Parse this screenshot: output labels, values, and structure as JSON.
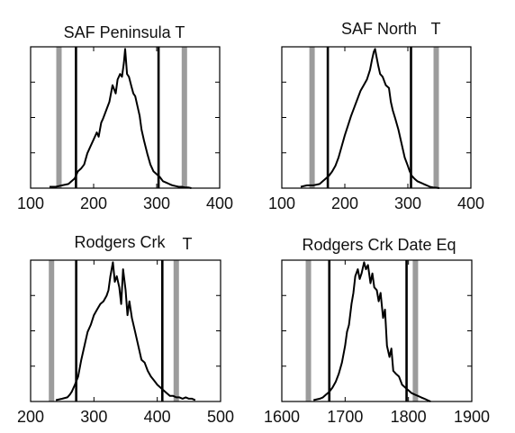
{
  "chart_data": [
    {
      "type": "line",
      "title": "SAF Peninsula  T",
      "xlim": [
        100,
        400
      ],
      "xticks": [
        100,
        200,
        300,
        400
      ],
      "ylim": [
        0,
        1
      ],
      "grid": false,
      "gray_lines": [
        145,
        344
      ],
      "black_lines": [
        172,
        303
      ],
      "series": [
        {
          "x": [
            130,
            140,
            150,
            160,
            165,
            170,
            175,
            180,
            185,
            190,
            195,
            200,
            205,
            208,
            212,
            215,
            220,
            225,
            230,
            235,
            238,
            242,
            245,
            248,
            250,
            253,
            256,
            260,
            263,
            266,
            270,
            273,
            276,
            280,
            285,
            290,
            295,
            300,
            305,
            310,
            315,
            320,
            325,
            330,
            335,
            340,
            345,
            350,
            355
          ],
          "y": [
            0.01,
            0.01,
            0.02,
            0.03,
            0.05,
            0.07,
            0.12,
            0.14,
            0.17,
            0.25,
            0.3,
            0.35,
            0.4,
            0.37,
            0.47,
            0.5,
            0.56,
            0.62,
            0.74,
            0.68,
            0.78,
            0.82,
            0.8,
            0.9,
            1.0,
            0.82,
            0.8,
            0.73,
            0.68,
            0.66,
            0.58,
            0.52,
            0.42,
            0.34,
            0.25,
            0.17,
            0.12,
            0.1,
            0.08,
            0.05,
            0.04,
            0.03,
            0.02,
            0.015,
            0.01,
            0.01,
            0.005,
            0.005,
            0.0
          ]
        }
      ]
    },
    {
      "type": "line",
      "title": "SAF North",
      "title_suffix": "T",
      "xlim": [
        100,
        400
      ],
      "xticks": [
        100,
        200,
        300,
        400
      ],
      "ylim": [
        0,
        1
      ],
      "grid": false,
      "gray_lines": [
        148,
        345
      ],
      "black_lines": [
        173,
        305
      ],
      "series": [
        {
          "x": [
            130,
            140,
            150,
            160,
            165,
            170,
            175,
            180,
            185,
            190,
            195,
            200,
            205,
            210,
            215,
            220,
            225,
            230,
            235,
            240,
            243,
            246,
            248,
            250,
            253,
            256,
            260,
            265,
            270,
            273,
            276,
            280,
            285,
            290,
            295,
            300,
            303,
            306,
            310,
            315,
            320,
            325,
            330,
            335,
            340,
            345,
            350
          ],
          "y": [
            0.01,
            0.02,
            0.02,
            0.03,
            0.05,
            0.07,
            0.09,
            0.12,
            0.16,
            0.22,
            0.3,
            0.38,
            0.45,
            0.52,
            0.58,
            0.64,
            0.7,
            0.74,
            0.78,
            0.85,
            0.92,
            0.98,
            1.0,
            0.95,
            0.88,
            0.82,
            0.8,
            0.74,
            0.72,
            0.62,
            0.56,
            0.5,
            0.42,
            0.32,
            0.22,
            0.16,
            0.12,
            0.09,
            0.07,
            0.05,
            0.04,
            0.03,
            0.02,
            0.01,
            0.005,
            0.003,
            0.0
          ]
        }
      ]
    },
    {
      "type": "line",
      "title": "Rodgers Crk",
      "title_suffix": "T",
      "xlim": [
        200,
        500
      ],
      "xticks": [
        200,
        300,
        400,
        500
      ],
      "ylim": [
        0,
        1
      ],
      "grid": false,
      "gray_lines": [
        233,
        430
      ],
      "black_lines": [
        272,
        408
      ],
      "series": [
        {
          "x": [
            240,
            250,
            258,
            262,
            265,
            270,
            275,
            280,
            285,
            290,
            295,
            300,
            305,
            310,
            315,
            320,
            323,
            326,
            328,
            330,
            333,
            336,
            340,
            343,
            346,
            350,
            353,
            356,
            360,
            365,
            370,
            375,
            380,
            385,
            390,
            395,
            400,
            405,
            410,
            415,
            420,
            425,
            430,
            435,
            440,
            445,
            450,
            455,
            460
          ],
          "y": [
            0.01,
            0.02,
            0.03,
            0.05,
            0.07,
            0.12,
            0.18,
            0.3,
            0.4,
            0.5,
            0.55,
            0.62,
            0.66,
            0.7,
            0.72,
            0.76,
            0.8,
            0.9,
            0.95,
            1.0,
            0.86,
            0.9,
            0.82,
            0.7,
            0.95,
            0.8,
            0.62,
            0.72,
            0.6,
            0.5,
            0.4,
            0.3,
            0.28,
            0.22,
            0.18,
            0.15,
            0.12,
            0.1,
            0.08,
            0.06,
            0.04,
            0.04,
            0.03,
            0.03,
            0.02,
            0.03,
            0.02,
            0.02,
            0.01
          ]
        }
      ]
    },
    {
      "type": "line",
      "title": "Rodgers Crk Date Eq",
      "xlim": [
        1600,
        1900
      ],
      "xticks": [
        1600,
        1700,
        1800,
        1900
      ],
      "ylim": [
        0,
        1
      ],
      "grid": false,
      "gray_lines": [
        1642,
        1811
      ],
      "black_lines": [
        1675,
        1797
      ],
      "series": [
        {
          "x": [
            1650,
            1660,
            1665,
            1670,
            1675,
            1680,
            1685,
            1690,
            1695,
            1700,
            1703,
            1706,
            1710,
            1713,
            1716,
            1720,
            1723,
            1726,
            1730,
            1733,
            1736,
            1740,
            1743,
            1746,
            1750,
            1753,
            1756,
            1760,
            1763,
            1766,
            1770,
            1773,
            1776,
            1780,
            1785,
            1790,
            1795,
            1800,
            1805,
            1810,
            1815,
            1820,
            1825,
            1830,
            1835
          ],
          "y": [
            0.01,
            0.02,
            0.03,
            0.05,
            0.07,
            0.1,
            0.14,
            0.2,
            0.28,
            0.4,
            0.5,
            0.55,
            0.7,
            0.78,
            0.9,
            0.95,
            0.88,
            0.92,
            1.0,
            0.95,
            0.98,
            0.85,
            0.92,
            0.82,
            0.8,
            0.72,
            0.78,
            0.6,
            0.66,
            0.4,
            0.32,
            0.38,
            0.22,
            0.2,
            0.18,
            0.12,
            0.1,
            0.08,
            0.06,
            0.05,
            0.04,
            0.03,
            0.02,
            0.01,
            0.0
          ]
        }
      ]
    }
  ]
}
